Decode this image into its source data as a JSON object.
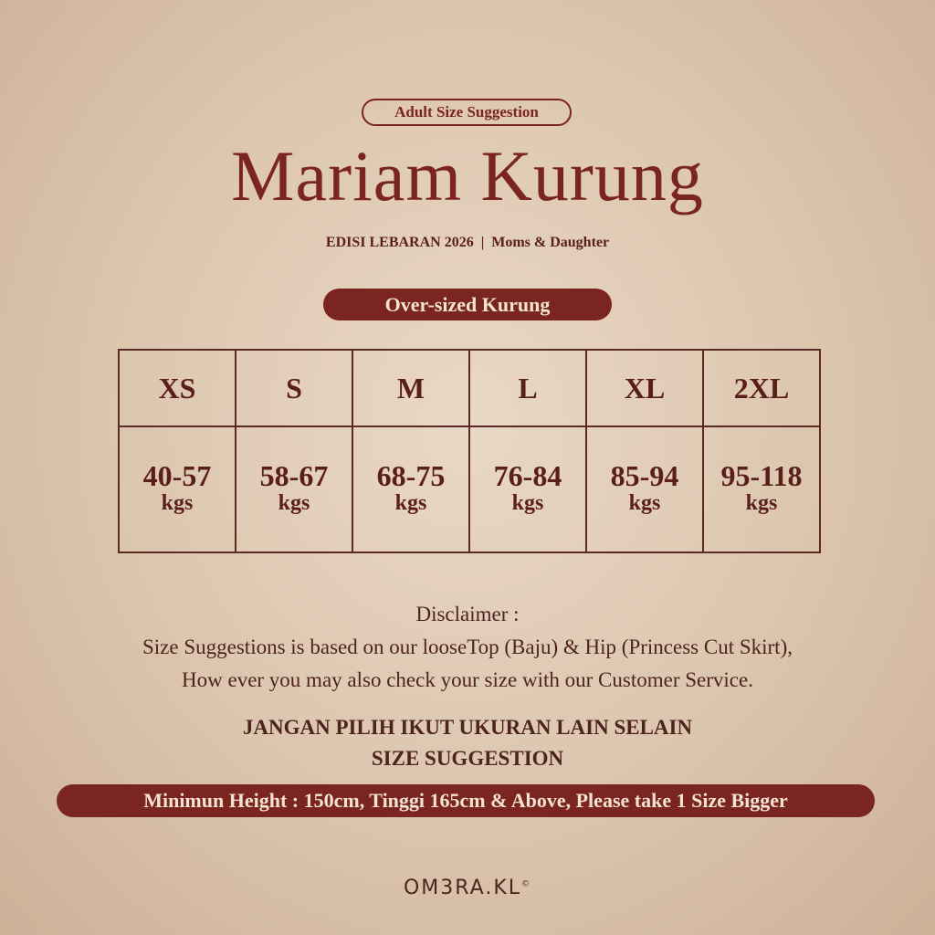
{
  "header": {
    "badge": "Adult Size Suggestion",
    "title": "Mariam Kurung",
    "subtitle": "EDISI LEBARAN 2026  |  Moms & Daughter",
    "category": "Over-sized Kurung"
  },
  "size_table": {
    "sizes": [
      "XS",
      "S",
      "M",
      "L",
      "XL",
      "2XL"
    ],
    "weights": [
      "40-57",
      "58-67",
      "68-75",
      "76-84",
      "85-94",
      "95-118"
    ],
    "unit": "kgs"
  },
  "disclaimer": {
    "heading": "Disclaimer :",
    "line1": "Size Suggestions is based on our looseTop (Baju) & Hip (Princess Cut Skirt),",
    "line2": "How ever you may also check your size with our Customer Service."
  },
  "warning": {
    "line1": "JANGAN PILIH IKUT UKURAN LAIN SELAIN",
    "line2": "SIZE SUGGESTION"
  },
  "height_note": "Minimun Height : 150cm, Tinggi 165cm & Above, Please take 1 Size Bigger",
  "brand": {
    "logo": "OM3RA.KL",
    "mark": "©"
  },
  "colors": {
    "accent": "#7a2520",
    "background": "#dcc5ad",
    "text": "#5a1f1a"
  }
}
